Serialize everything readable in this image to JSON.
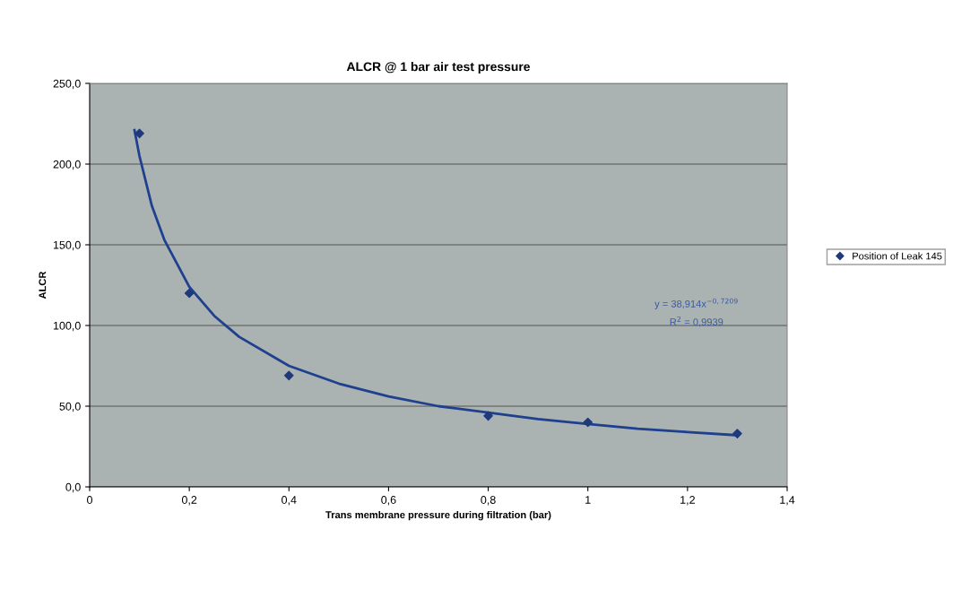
{
  "chart_data": {
    "type": "scatter",
    "title": "ALCR @ 1 bar air test pressure",
    "xlabel": "Trans membrane pressure during filtration (bar)",
    "ylabel": "ALCR",
    "series": [
      {
        "name": "Position of Leak 145",
        "color": "#1f3a7a",
        "marker": "diamond",
        "x": [
          0.1,
          0.2,
          0.4,
          0.8,
          1.0,
          1.3
        ],
        "values": [
          219,
          120,
          69,
          44,
          40,
          33
        ]
      },
      {
        "type": "line",
        "color": "#1f3f8f",
        "marker": "none",
        "line_style": "solid",
        "x": [
          0.09,
          0.1,
          0.125,
          0.15,
          0.2,
          0.25,
          0.3,
          0.4,
          0.5,
          0.6,
          0.7,
          0.8,
          0.9,
          1.0,
          1.1,
          1.2,
          1.3
        ],
        "values": [
          221,
          205,
          174,
          153,
          124,
          106,
          93,
          75,
          64,
          56,
          50,
          46,
          42,
          39,
          36,
          34,
          32
        ]
      }
    ],
    "xlim": [
      0,
      1.4
    ],
    "xticks": [
      0,
      {
        "value": 0.2,
        "label": "0,2"
      },
      {
        "value": 0.4,
        "label": "0,4"
      },
      {
        "value": 0.6,
        "label": "0,6"
      },
      {
        "value": 0.8,
        "label": "0,8"
      },
      1,
      {
        "value": 1.2,
        "label": "1,2"
      },
      {
        "value": 1.4,
        "label": "1,4"
      }
    ],
    "ylim": [
      0,
      250
    ],
    "yticks": [
      {
        "value": 0,
        "label": "0,0"
      },
      {
        "value": 50,
        "label": "50,0"
      },
      {
        "value": 100,
        "label": "100,0"
      },
      {
        "value": 150,
        "label": "150,0"
      },
      {
        "value": 200,
        "label": "200,0"
      },
      {
        "value": 250,
        "label": "250,0"
      }
    ],
    "grid": "y",
    "legend": "right",
    "annotations": [
      "y = 38,914x$^{−0,7209}$",
      "R$^{2}$ = 0,9939"
    ]
  }
}
